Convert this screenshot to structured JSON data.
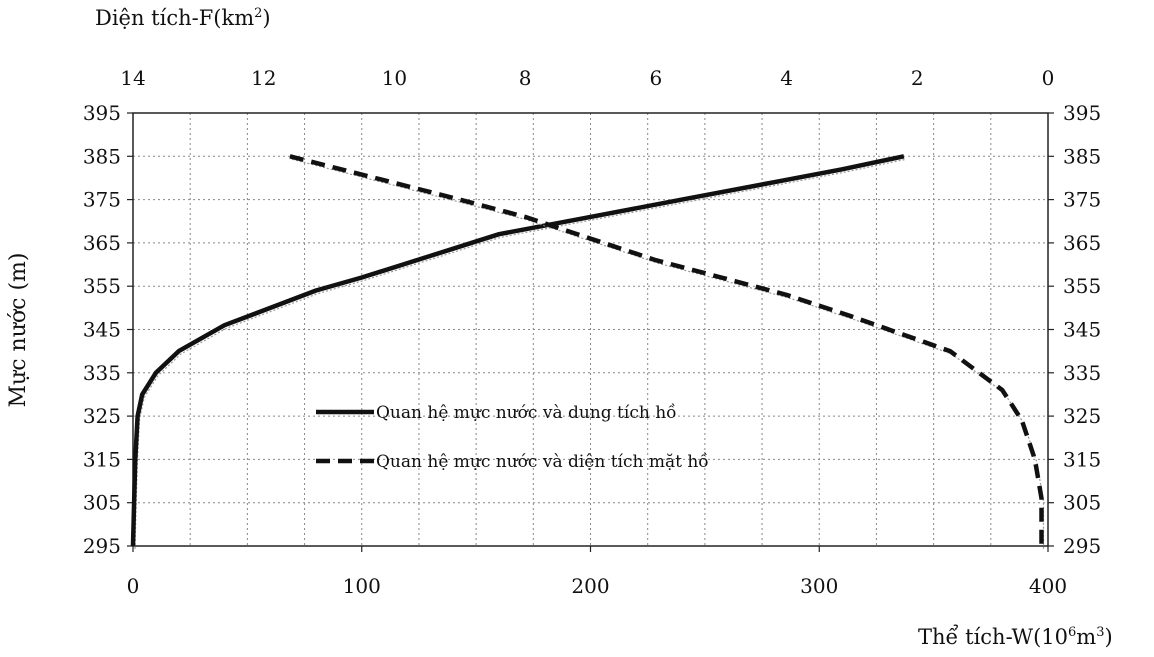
{
  "chart_data": {
    "type": "line",
    "top_axis_label": {
      "text": "Diện tích-F(km",
      "sup": "2",
      "close": ")"
    },
    "bottom_axis_label": {
      "text": "Thể tích-W(10",
      "sup1": "6",
      "mid": "m",
      "sup2": "3",
      "close": ")"
    },
    "ylabel": "Mực nước (m)",
    "ylim": [
      295,
      395
    ],
    "yticks": [
      "295",
      "305",
      "315",
      "325",
      "335",
      "345",
      "355",
      "365",
      "375",
      "385",
      "395"
    ],
    "xlim_bottom": [
      0,
      400
    ],
    "xticks_bottom": [
      "0",
      "100",
      "200",
      "300",
      "400"
    ],
    "xlim_top": [
      14,
      0
    ],
    "xticks_top": [
      "14",
      "12",
      "10",
      "8",
      "6",
      "4",
      "2",
      "0"
    ],
    "grid": true,
    "series": [
      {
        "name": "Quan hệ mực nước và dung tích hồ",
        "axis": "bottom",
        "style": "solid",
        "color": "#111111",
        "x": [
          0,
          0.5,
          1,
          2,
          4,
          10,
          20,
          40,
          60,
          80,
          100,
          130,
          160,
          200,
          240,
          280,
          310,
          337
        ],
        "y": [
          295,
          305,
          315,
          325,
          330,
          335,
          340,
          346,
          350,
          354,
          357,
          362,
          367,
          371,
          375,
          379,
          382,
          385
        ]
      },
      {
        "name": "Quan hệ mực nước và diện tích mặt hồ",
        "axis": "top",
        "style": "dashed",
        "color": "#111111",
        "x": [
          11.6,
          10.3,
          9.0,
          8.0,
          7.0,
          6.0,
          5.0,
          4.0,
          3.0,
          1.5,
          0.7,
          0.4,
          0.2,
          0.1,
          0.1
        ],
        "y": [
          385,
          380,
          375,
          371,
          366,
          361,
          357,
          353,
          348,
          340,
          331,
          324,
          315,
          306,
          295
        ]
      }
    ],
    "legend_position": "lower-center"
  }
}
